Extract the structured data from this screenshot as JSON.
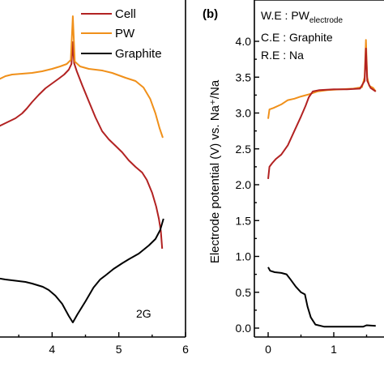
{
  "chart_data": [
    {
      "type": "line",
      "panel": "left",
      "xlim": [
        3,
        6
      ],
      "xticks": [
        "4",
        "5",
        "6"
      ],
      "legend": {
        "placement": "top-right",
        "entries": [
          "Cell",
          "PW",
          "Graphite"
        ]
      },
      "annotation": "2G",
      "series": [
        {
          "name": "Cell",
          "color": "#b22222",
          "points": [
            [
              3.0,
              178
            ],
            [
              3.05,
              165
            ],
            [
              3.15,
              158
            ],
            [
              3.3,
              152
            ],
            [
              3.45,
              146
            ],
            [
              3.55,
              140
            ],
            [
              3.62,
              134
            ],
            [
              3.7,
              126
            ],
            [
              3.8,
              117
            ],
            [
              3.9,
              109
            ],
            [
              4.0,
              103
            ],
            [
              4.1,
              97
            ],
            [
              4.18,
              92
            ],
            [
              4.25,
              86
            ],
            [
              4.29,
              79
            ],
            [
              4.31,
              52
            ],
            [
              4.33,
              78
            ],
            [
              4.37,
              88
            ],
            [
              4.45,
              105
            ],
            [
              4.55,
              125
            ],
            [
              4.65,
              145
            ],
            [
              4.75,
              162
            ],
            [
              4.85,
              172
            ],
            [
              4.95,
              180
            ],
            [
              5.05,
              188
            ],
            [
              5.15,
              198
            ],
            [
              5.25,
              206
            ],
            [
              5.35,
              213
            ],
            [
              5.42,
              222
            ],
            [
              5.5,
              238
            ],
            [
              5.56,
              255
            ],
            [
              5.6,
              270
            ],
            [
              5.63,
              285
            ],
            [
              5.65,
              307
            ]
          ]
        },
        {
          "name": "PW",
          "color": "#f0901a",
          "points": [
            [
              3.0,
              103
            ],
            [
              3.05,
              102
            ],
            [
              3.12,
              100
            ],
            [
              3.2,
              98
            ],
            [
              3.3,
              94
            ],
            [
              3.4,
              92
            ],
            [
              3.55,
              91
            ],
            [
              3.7,
              90
            ],
            [
              3.85,
              88
            ],
            [
              4.0,
              85
            ],
            [
              4.12,
              82
            ],
            [
              4.22,
              79
            ],
            [
              4.28,
              74
            ],
            [
              4.31,
              20
            ],
            [
              4.34,
              76
            ],
            [
              4.42,
              82
            ],
            [
              4.55,
              85
            ],
            [
              4.75,
              87
            ],
            [
              4.9,
              90
            ],
            [
              5.1,
              96
            ],
            [
              5.25,
              100
            ],
            [
              5.37,
              108
            ],
            [
              5.47,
              122
            ],
            [
              5.55,
              140
            ],
            [
              5.61,
              158
            ],
            [
              5.66,
              170
            ]
          ]
        },
        {
          "name": "Graphite",
          "color": "#000000",
          "points": [
            [
              3.0,
              333
            ],
            [
              3.04,
              340
            ],
            [
              3.08,
              342
            ],
            [
              3.15,
              343
            ],
            [
              3.3,
              345
            ],
            [
              3.5,
              347
            ],
            [
              3.6,
              348
            ],
            [
              3.7,
              350
            ],
            [
              3.78,
              352
            ],
            [
              3.86,
              354
            ],
            [
              3.95,
              358
            ],
            [
              4.05,
              365
            ],
            [
              4.15,
              375
            ],
            [
              4.25,
              390
            ],
            [
              4.31,
              398
            ],
            [
              4.38,
              388
            ],
            [
              4.5,
              372
            ],
            [
              4.62,
              355
            ],
            [
              4.72,
              345
            ],
            [
              4.8,
              340
            ],
            [
              4.92,
              332
            ],
            [
              5.05,
              325
            ],
            [
              5.15,
              320
            ],
            [
              5.3,
              313
            ],
            [
              5.45,
              303
            ],
            [
              5.55,
              295
            ],
            [
              5.62,
              284
            ],
            [
              5.67,
              270
            ]
          ]
        }
      ]
    },
    {
      "type": "line",
      "panel": "right",
      "panel_label": "(b)",
      "ylabel": "Electrode potential (V) vs. Na⁺/Na",
      "ylim": [
        -0.2,
        4.2
      ],
      "yticks": [
        "0.0",
        "0.5",
        "1.0",
        "1.5",
        "2.0",
        "2.5",
        "3.0",
        "3.5",
        "4.0"
      ],
      "xticks": [
        "0",
        "1"
      ],
      "annotations": {
        "we_prefix": "W.E : PW",
        "we_sub": "electrode",
        "ce": "C.E : Graphite",
        "re": "R.E : Na"
      },
      "series": [
        {
          "name": "PW",
          "color": "#f0901a",
          "points": [
            [
              0.0,
              2.92
            ],
            [
              0.02,
              3.05
            ],
            [
              0.08,
              3.07
            ],
            [
              0.2,
              3.12
            ],
            [
              0.3,
              3.18
            ],
            [
              0.4,
              3.2
            ],
            [
              0.5,
              3.23
            ],
            [
              0.62,
              3.26
            ],
            [
              0.75,
              3.3
            ],
            [
              0.9,
              3.32
            ],
            [
              1.1,
              3.33
            ],
            [
              1.3,
              3.34
            ],
            [
              1.43,
              3.36
            ],
            [
              1.47,
              3.5
            ],
            [
              1.49,
              4.02
            ],
            [
              1.51,
              3.5
            ],
            [
              1.54,
              3.38
            ],
            [
              1.6,
              3.35
            ],
            [
              1.64,
              3.3
            ]
          ]
        },
        {
          "name": "Cell",
          "color": "#b22222",
          "points": [
            [
              0.0,
              2.08
            ],
            [
              0.02,
              2.25
            ],
            [
              0.06,
              2.3
            ],
            [
              0.12,
              2.36
            ],
            [
              0.2,
              2.42
            ],
            [
              0.3,
              2.55
            ],
            [
              0.4,
              2.75
            ],
            [
              0.5,
              2.95
            ],
            [
              0.57,
              3.1
            ],
            [
              0.62,
              3.22
            ],
            [
              0.68,
              3.3
            ],
            [
              0.78,
              3.32
            ],
            [
              1.0,
              3.33
            ],
            [
              1.2,
              3.33
            ],
            [
              1.4,
              3.34
            ],
            [
              1.47,
              3.45
            ],
            [
              1.49,
              3.9
            ],
            [
              1.51,
              3.45
            ],
            [
              1.56,
              3.35
            ],
            [
              1.64,
              3.3
            ]
          ]
        },
        {
          "name": "Graphite",
          "color": "#000000",
          "points": [
            [
              0.0,
              0.85
            ],
            [
              0.03,
              0.8
            ],
            [
              0.1,
              0.78
            ],
            [
              0.2,
              0.77
            ],
            [
              0.28,
              0.75
            ],
            [
              0.34,
              0.68
            ],
            [
              0.42,
              0.58
            ],
            [
              0.5,
              0.5
            ],
            [
              0.56,
              0.47
            ],
            [
              0.6,
              0.3
            ],
            [
              0.65,
              0.15
            ],
            [
              0.72,
              0.05
            ],
            [
              0.85,
              0.02
            ],
            [
              1.0,
              0.02
            ],
            [
              1.3,
              0.02
            ],
            [
              1.45,
              0.02
            ],
            [
              1.5,
              0.04
            ],
            [
              1.64,
              0.03
            ]
          ]
        }
      ]
    }
  ]
}
